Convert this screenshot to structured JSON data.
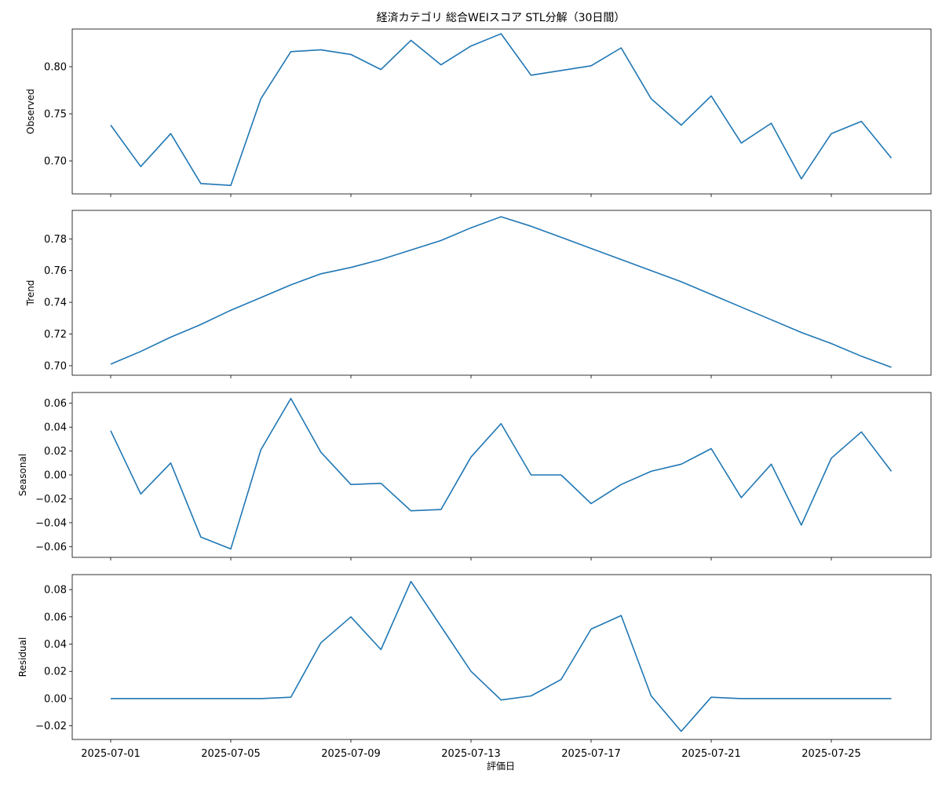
{
  "title": "経済カテゴリ 総合WEIスコア STL分解（30日間）",
  "xlabel": "評価日",
  "line_color": "#1f77b4",
  "chart_data": [
    {
      "type": "line",
      "ylabel": "Observed",
      "ylim": [
        0.665,
        0.84
      ],
      "yticks": [
        0.7,
        0.75,
        0.8
      ],
      "ytick_labels": [
        "0.70",
        "0.75",
        "0.80"
      ],
      "grid": false,
      "x": [
        "2025-07-01",
        "2025-07-02",
        "2025-07-03",
        "2025-07-04",
        "2025-07-05",
        "2025-07-06",
        "2025-07-07",
        "2025-07-08",
        "2025-07-09",
        "2025-07-10",
        "2025-07-11",
        "2025-07-12",
        "2025-07-13",
        "2025-07-14",
        "2025-07-15",
        "2025-07-16",
        "2025-07-17",
        "2025-07-18",
        "2025-07-19",
        "2025-07-20",
        "2025-07-21",
        "2025-07-22",
        "2025-07-23",
        "2025-07-24",
        "2025-07-25",
        "2025-07-26",
        "2025-07-27"
      ],
      "series": [
        {
          "values": [
            0.738,
            0.694,
            0.729,
            0.676,
            0.674,
            0.766,
            0.816,
            0.818,
            0.813,
            0.797,
            0.828,
            0.802,
            0.822,
            0.835,
            0.791,
            0.796,
            0.801,
            0.82,
            0.766,
            0.738,
            0.769,
            0.719,
            0.74,
            0.681,
            0.729,
            0.742,
            0.703
          ]
        }
      ]
    },
    {
      "type": "line",
      "ylabel": "Trend",
      "ylim": [
        0.694,
        0.798
      ],
      "yticks": [
        0.7,
        0.72,
        0.74,
        0.76,
        0.78
      ],
      "ytick_labels": [
        "0.70",
        "0.72",
        "0.74",
        "0.76",
        "0.78"
      ],
      "grid": false,
      "x": [
        "2025-07-01",
        "2025-07-02",
        "2025-07-03",
        "2025-07-04",
        "2025-07-05",
        "2025-07-06",
        "2025-07-07",
        "2025-07-08",
        "2025-07-09",
        "2025-07-10",
        "2025-07-11",
        "2025-07-12",
        "2025-07-13",
        "2025-07-14",
        "2025-07-15",
        "2025-07-16",
        "2025-07-17",
        "2025-07-18",
        "2025-07-19",
        "2025-07-20",
        "2025-07-21",
        "2025-07-22",
        "2025-07-23",
        "2025-07-24",
        "2025-07-25",
        "2025-07-26",
        "2025-07-27"
      ],
      "series": [
        {
          "values": [
            0.701,
            0.709,
            0.718,
            0.726,
            0.735,
            0.743,
            0.751,
            0.758,
            0.762,
            0.767,
            0.773,
            0.779,
            0.787,
            0.794,
            0.788,
            0.781,
            0.774,
            0.767,
            0.76,
            0.753,
            0.745,
            0.737,
            0.729,
            0.721,
            0.714,
            0.706,
            0.699
          ]
        }
      ]
    },
    {
      "type": "line",
      "ylabel": "Seasonal",
      "ylim": [
        -0.069,
        0.069
      ],
      "yticks": [
        -0.06,
        -0.04,
        -0.02,
        0.0,
        0.02,
        0.04,
        0.06
      ],
      "ytick_labels": [
        "−0.06",
        "−0.04",
        "−0.02",
        "0.00",
        "0.02",
        "0.04",
        "0.06"
      ],
      "grid": false,
      "x": [
        "2025-07-01",
        "2025-07-02",
        "2025-07-03",
        "2025-07-04",
        "2025-07-05",
        "2025-07-06",
        "2025-07-07",
        "2025-07-08",
        "2025-07-09",
        "2025-07-10",
        "2025-07-11",
        "2025-07-12",
        "2025-07-13",
        "2025-07-14",
        "2025-07-15",
        "2025-07-16",
        "2025-07-17",
        "2025-07-18",
        "2025-07-19",
        "2025-07-20",
        "2025-07-21",
        "2025-07-22",
        "2025-07-23",
        "2025-07-24",
        "2025-07-25",
        "2025-07-26",
        "2025-07-27"
      ],
      "series": [
        {
          "values": [
            0.037,
            -0.016,
            0.01,
            -0.052,
            -0.062,
            0.021,
            0.064,
            0.019,
            -0.008,
            -0.007,
            -0.03,
            -0.029,
            0.015,
            0.043,
            0.0,
            0.0,
            -0.024,
            -0.008,
            0.003,
            0.009,
            0.022,
            -0.019,
            0.009,
            -0.042,
            0.014,
            0.036,
            0.003
          ]
        }
      ]
    },
    {
      "type": "line",
      "ylabel": "Residual",
      "ylim": [
        -0.03,
        0.091
      ],
      "yticks": [
        -0.02,
        0.0,
        0.02,
        0.04,
        0.06,
        0.08
      ],
      "ytick_labels": [
        "−0.02",
        "0.00",
        "0.02",
        "0.04",
        "0.06",
        "0.08"
      ],
      "grid": false,
      "x": [
        "2025-07-01",
        "2025-07-02",
        "2025-07-03",
        "2025-07-04",
        "2025-07-05",
        "2025-07-06",
        "2025-07-07",
        "2025-07-08",
        "2025-07-09",
        "2025-07-10",
        "2025-07-11",
        "2025-07-12",
        "2025-07-13",
        "2025-07-14",
        "2025-07-15",
        "2025-07-16",
        "2025-07-17",
        "2025-07-18",
        "2025-07-19",
        "2025-07-20",
        "2025-07-21",
        "2025-07-22",
        "2025-07-23",
        "2025-07-24",
        "2025-07-25",
        "2025-07-26",
        "2025-07-27"
      ],
      "series": [
        {
          "values": [
            0.0,
            0.0,
            0.0,
            0.0,
            0.0,
            0.0,
            0.001,
            0.041,
            0.06,
            0.036,
            0.086,
            0.053,
            0.02,
            -0.001,
            0.002,
            0.014,
            0.051,
            0.061,
            0.002,
            -0.024,
            0.001,
            0.0,
            0.0,
            0.0,
            0.0,
            0.0,
            0.0
          ]
        }
      ]
    }
  ],
  "xticks": [
    "2025-07-01",
    "2025-07-05",
    "2025-07-09",
    "2025-07-13",
    "2025-07-17",
    "2025-07-21",
    "2025-07-25"
  ],
  "xtick_labels": [
    "2025-07-01",
    "2025-07-05",
    "2025-07-09",
    "2025-07-13",
    "2025-07-17",
    "2025-07-21",
    "2025-07-25"
  ]
}
